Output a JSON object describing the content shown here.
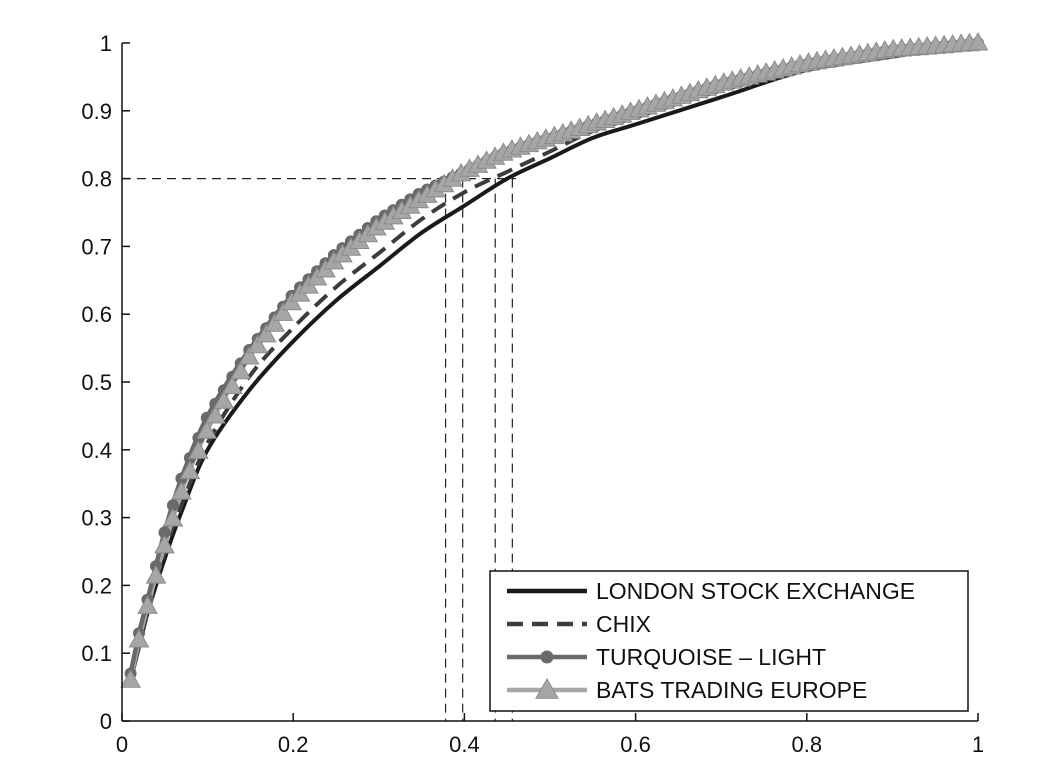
{
  "chart_data": {
    "type": "line",
    "title": "",
    "xlabel": "",
    "ylabel": "",
    "xlim": [
      0,
      1
    ],
    "ylim": [
      0,
      1
    ],
    "x_ticks": [
      "0",
      "0.2",
      "0.4",
      "0.6",
      "0.8",
      "1"
    ],
    "y_ticks": [
      "0",
      "0.1",
      "0.2",
      "0.3",
      "0.4",
      "0.5",
      "0.6",
      "0.7",
      "0.8",
      "0.9",
      "1"
    ],
    "grid": false,
    "legend_position": "bottom-right",
    "reference_lines": {
      "horizontal": {
        "y": 0.8,
        "x_from": 0,
        "x_to": 0.46
      },
      "vertical": [
        {
          "x": 0.378,
          "y_from": 0,
          "y_to": 0.8
        },
        {
          "x": 0.398,
          "y_from": 0,
          "y_to": 0.8
        },
        {
          "x": 0.436,
          "y_from": 0,
          "y_to": 0.8
        },
        {
          "x": 0.456,
          "y_from": 0,
          "y_to": 0.8
        }
      ]
    },
    "x": [
      0.01,
      0.02,
      0.03,
      0.05,
      0.07,
      0.1,
      0.15,
      0.2,
      0.25,
      0.3,
      0.35,
      0.4,
      0.45,
      0.5,
      0.55,
      0.6,
      0.7,
      0.8,
      0.9,
      1.0
    ],
    "series": [
      {
        "name": "LONDON STOCK EXCHANGE",
        "color": "#1a1a1a",
        "style": "solid",
        "marker": "none",
        "values": [
          0.06,
          0.11,
          0.16,
          0.24,
          0.31,
          0.4,
          0.49,
          0.56,
          0.62,
          0.67,
          0.72,
          0.76,
          0.8,
          0.83,
          0.86,
          0.88,
          0.92,
          0.96,
          0.98,
          1.0
        ]
      },
      {
        "name": "CHIX",
        "color": "#3c3c3c",
        "style": "dashed",
        "marker": "none",
        "values": [
          0.06,
          0.11,
          0.16,
          0.25,
          0.32,
          0.41,
          0.51,
          0.58,
          0.64,
          0.69,
          0.74,
          0.78,
          0.81,
          0.84,
          0.87,
          0.89,
          0.93,
          0.96,
          0.98,
          1.0
        ]
      },
      {
        "name": "TURQUOISE – LIGHT",
        "color": "#6a6a6a",
        "style": "solid",
        "marker": "circle",
        "values": [
          0.07,
          0.13,
          0.18,
          0.28,
          0.36,
          0.45,
          0.55,
          0.63,
          0.69,
          0.74,
          0.78,
          0.81,
          0.84,
          0.86,
          0.88,
          0.9,
          0.94,
          0.97,
          0.99,
          1.0
        ]
      },
      {
        "name": "BATS TRADING EUROPE",
        "color": "#a6a6a6",
        "style": "solid",
        "marker": "triangle",
        "values": [
          0.06,
          0.12,
          0.17,
          0.26,
          0.34,
          0.43,
          0.54,
          0.62,
          0.68,
          0.73,
          0.77,
          0.81,
          0.84,
          0.86,
          0.88,
          0.9,
          0.94,
          0.97,
          0.99,
          1.0
        ]
      }
    ]
  }
}
